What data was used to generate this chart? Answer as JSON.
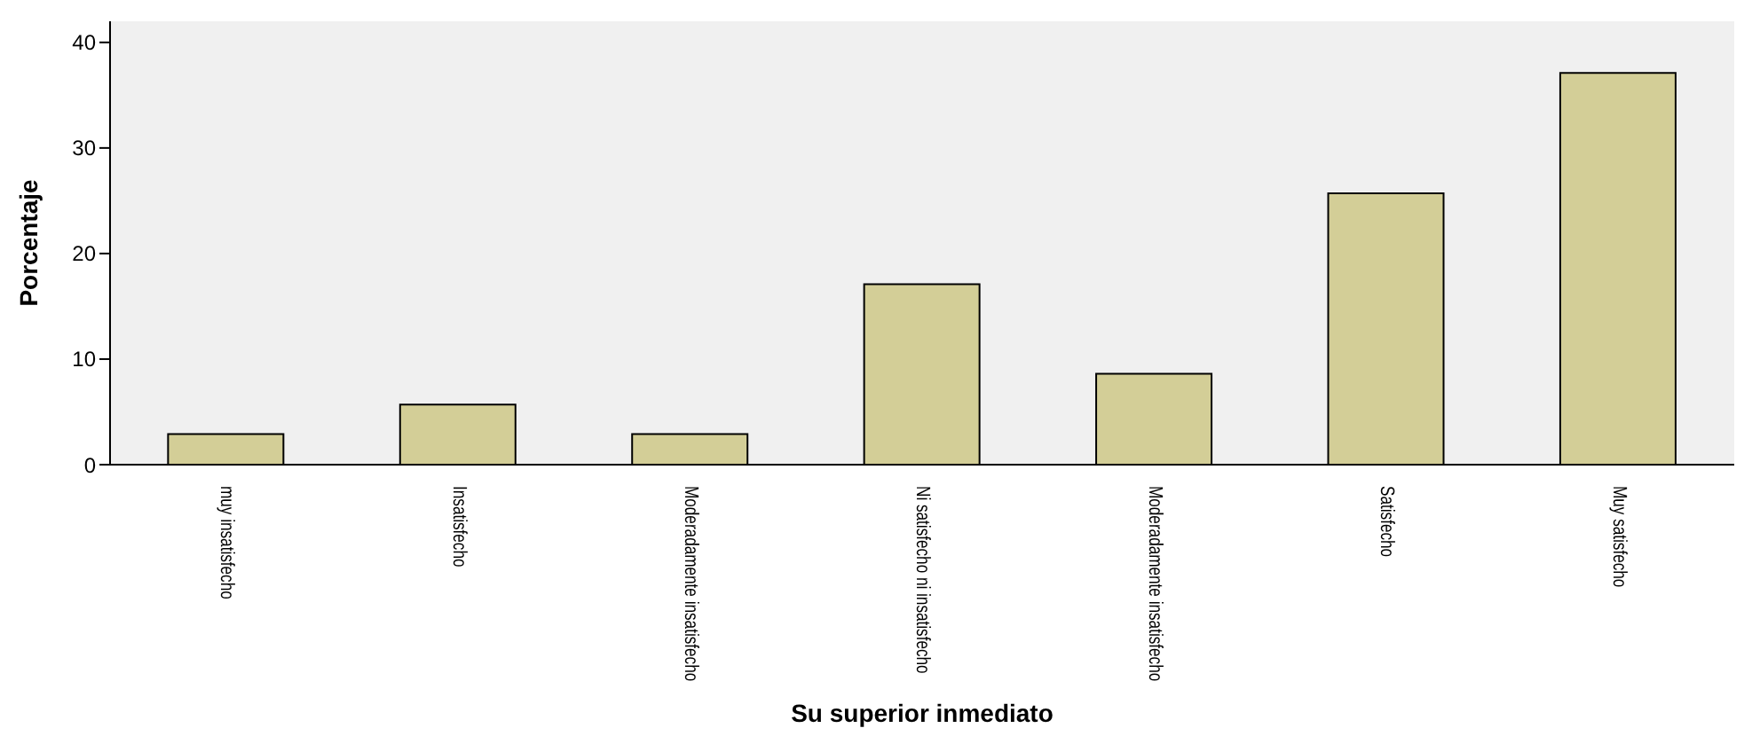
{
  "chart_data": {
    "type": "bar",
    "xlabel": "Su superior inmediato",
    "ylabel": "Porcentaje",
    "categories": [
      "muy insatisfecho",
      "Insatisfecho",
      "Moderadamente insatisfecho",
      "Ni satisfecho ni insatisfecho",
      "Moderadamente insatisfecho",
      "Satisfecho",
      "Muy satisfecho"
    ],
    "values": [
      2.9,
      5.7,
      2.9,
      17.1,
      8.6,
      25.7,
      37.1
    ],
    "color": "#d3ce97",
    "ylim": [
      0,
      42
    ],
    "yticks": [
      0,
      10,
      20,
      30,
      40
    ],
    "grid": false
  }
}
